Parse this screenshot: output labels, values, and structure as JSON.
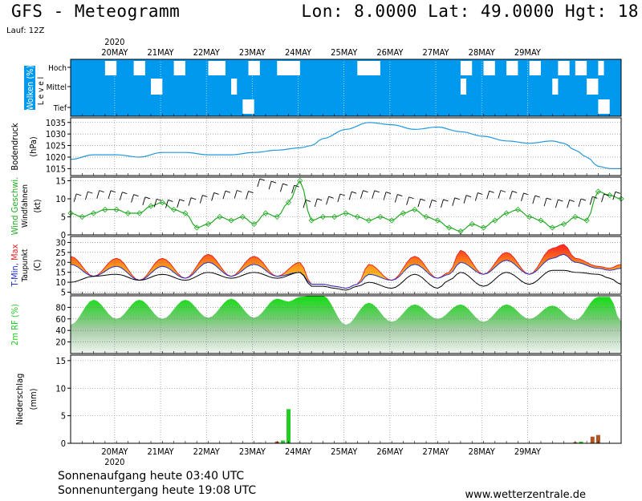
{
  "header": {
    "title": "GFS - Meteogramm",
    "coords": "Lon: 8.0000 Lat: 49.0000 Hgt: 18",
    "run": "Lauf: 12Z"
  },
  "footer": {
    "sunrise": "Sonnenaufgang heute 03:40 UTC",
    "sunset": "Sonnenuntergang heute 19:08 UTC",
    "credit": "www.wetterzentrale.de"
  },
  "colors": {
    "cloud_blue": "#0099ee",
    "pressure_line": "#2299dd",
    "wind_green": "#22aa22",
    "tmin_blue": "#2233cc",
    "tmax_red": "#ee2222",
    "humidity_green": "#22cc22",
    "precip_green": "#22cc22",
    "precip_brown": "#b05522"
  },
  "chart_data": {
    "type": "meteogram",
    "year_label": "2020",
    "x_categories": [
      "20MAY",
      "21MAY",
      "22MAY",
      "23MAY",
      "24MAY",
      "25MAY",
      "26MAY",
      "27MAY",
      "28MAY",
      "29MAY"
    ],
    "panels": [
      {
        "id": "clouds",
        "ylabel": "Wolken (%)",
        "ylabel2": "L e v e l",
        "levels": [
          "Hoch",
          "Mittel",
          "Tief"
        ],
        "clear_gaps_hours": {
          "Hoch": [
            [
              18,
              24
            ],
            [
              33,
              39
            ],
            [
              54,
              60
            ],
            [
              72,
              81
            ],
            [
              93,
              99
            ],
            [
              108,
              120
            ],
            [
              150,
              162
            ],
            [
              204,
              210
            ],
            [
              216,
              222
            ],
            [
              228,
              234
            ],
            [
              240,
              246
            ],
            [
              255,
              261
            ],
            [
              264,
              270
            ],
            [
              276,
              279
            ]
          ],
          "Mittel": [
            [
              42,
              48
            ],
            [
              84,
              87
            ],
            [
              204,
              207
            ],
            [
              252,
              255
            ],
            [
              270,
              276
            ]
          ],
          "Tief": [
            [
              90,
              96
            ],
            [
              276,
              282
            ]
          ]
        }
      },
      {
        "id": "pressure",
        "ylabel": "Bodendruck",
        "unit": "(hPa)",
        "yticks": [
          1015,
          1020,
          1025,
          1030,
          1035
        ],
        "ylim": [
          1012,
          1037
        ],
        "x_hours": [
          0,
          12,
          24,
          36,
          48,
          60,
          72,
          84,
          96,
          108,
          120,
          126,
          132,
          144,
          156,
          168,
          180,
          192,
          204,
          216,
          228,
          240,
          252,
          258,
          264,
          270,
          276,
          282,
          288
        ],
        "y": [
          1019,
          1021,
          1021,
          1020,
          1022,
          1022,
          1021,
          1021,
          1022,
          1023,
          1024,
          1025,
          1028,
          1032,
          1035,
          1034,
          1032,
          1033,
          1031,
          1029,
          1027,
          1026,
          1027,
          1026,
          1023,
          1020,
          1016,
          1015,
          1015
        ]
      },
      {
        "id": "wind",
        "ylabel": "Wind Geschwi.",
        "ylabel2": "Windfahnen",
        "unit": "(kt)",
        "yticks": [
          0,
          5,
          10,
          15
        ],
        "ylim": [
          0,
          16
        ],
        "x_hours": [
          0,
          6,
          12,
          18,
          24,
          30,
          36,
          42,
          48,
          54,
          60,
          66,
          72,
          78,
          84,
          90,
          96,
          102,
          108,
          114,
          120,
          126,
          132,
          138,
          144,
          150,
          156,
          162,
          168,
          174,
          180,
          186,
          192,
          198,
          204,
          210,
          216,
          222,
          228,
          234,
          240,
          246,
          252,
          258,
          264,
          270,
          276,
          282,
          288
        ],
        "y": [
          6,
          5,
          6,
          7,
          7,
          6,
          6,
          8,
          9,
          7,
          6,
          2,
          3,
          5,
          4,
          5,
          3,
          6,
          5,
          9,
          15,
          4,
          5,
          5,
          6,
          5,
          4,
          5,
          4,
          6,
          7,
          5,
          4,
          2,
          1,
          3,
          2,
          4,
          6,
          7,
          5,
          4,
          2,
          3,
          5,
          4,
          12,
          11,
          10
        ]
      },
      {
        "id": "temperature",
        "ylabel": "T-Min, Max",
        "ylabel2": "Taupunkt",
        "unit": "(C)",
        "yticks": [
          5,
          10,
          15,
          20,
          25,
          30
        ],
        "ylim": [
          4,
          33
        ],
        "x_hours": [
          0,
          12,
          24,
          36,
          48,
          60,
          72,
          84,
          96,
          108,
          120,
          126,
          132,
          138,
          144,
          150,
          156,
          168,
          180,
          192,
          198,
          204,
          216,
          228,
          240,
          252,
          258,
          264,
          276,
          282,
          288
        ],
        "tmax": [
          23,
          13,
          22,
          11,
          22,
          12,
          24,
          13,
          23,
          13,
          20,
          9,
          9,
          8,
          7,
          9,
          19,
          11,
          23,
          12,
          15,
          26,
          14,
          25,
          14,
          27,
          29,
          22,
          18,
          17,
          19
        ],
        "tmin": [
          19,
          13,
          18,
          11,
          18,
          12,
          20,
          13,
          19,
          13,
          15,
          9,
          9,
          8,
          7,
          9,
          14,
          11,
          19,
          12,
          14,
          20,
          14,
          21,
          14,
          22,
          24,
          20,
          17,
          16,
          17
        ],
        "dewpoint": [
          10,
          13,
          14,
          11,
          14,
          11,
          15,
          12,
          15,
          12,
          15,
          8,
          8,
          7,
          6,
          8,
          10,
          7,
          14,
          7,
          11,
          15,
          8,
          15,
          9,
          16,
          16,
          15,
          14,
          12,
          9
        ]
      },
      {
        "id": "humidity",
        "ylabel": "2m RF (%)",
        "yticks": [
          20,
          40,
          60,
          80
        ],
        "ylim": [
          0,
          100
        ],
        "x_hours": [
          0,
          12,
          24,
          36,
          48,
          60,
          72,
          84,
          96,
          108,
          114,
          120,
          126,
          132,
          144,
          156,
          168,
          180,
          192,
          204,
          216,
          228,
          240,
          252,
          264,
          276,
          282,
          288
        ],
        "y": [
          50,
          93,
          60,
          93,
          60,
          93,
          62,
          95,
          62,
          95,
          90,
          98,
          100,
          100,
          50,
          88,
          55,
          85,
          60,
          85,
          55,
          85,
          60,
          83,
          58,
          98,
          98,
          55
        ]
      },
      {
        "id": "precip",
        "ylabel": "Niederschlag",
        "unit": "(mm)",
        "yticks": [
          0,
          5,
          10,
          15
        ],
        "ylim": [
          0,
          16
        ],
        "bars": [
          {
            "h": 99,
            "v": 0.1,
            "c": "brown"
          },
          {
            "h": 108,
            "v": 0.3,
            "c": "brown"
          },
          {
            "h": 111,
            "v": 0.5,
            "c": "green"
          },
          {
            "h": 114,
            "v": 6.2,
            "c": "green"
          },
          {
            "h": 264,
            "v": 0.2,
            "c": "brown"
          },
          {
            "h": 267,
            "v": 0.3,
            "c": "green"
          },
          {
            "h": 273,
            "v": 1.2,
            "c": "brown"
          },
          {
            "h": 276,
            "v": 1.5,
            "c": "brown"
          }
        ]
      }
    ]
  }
}
